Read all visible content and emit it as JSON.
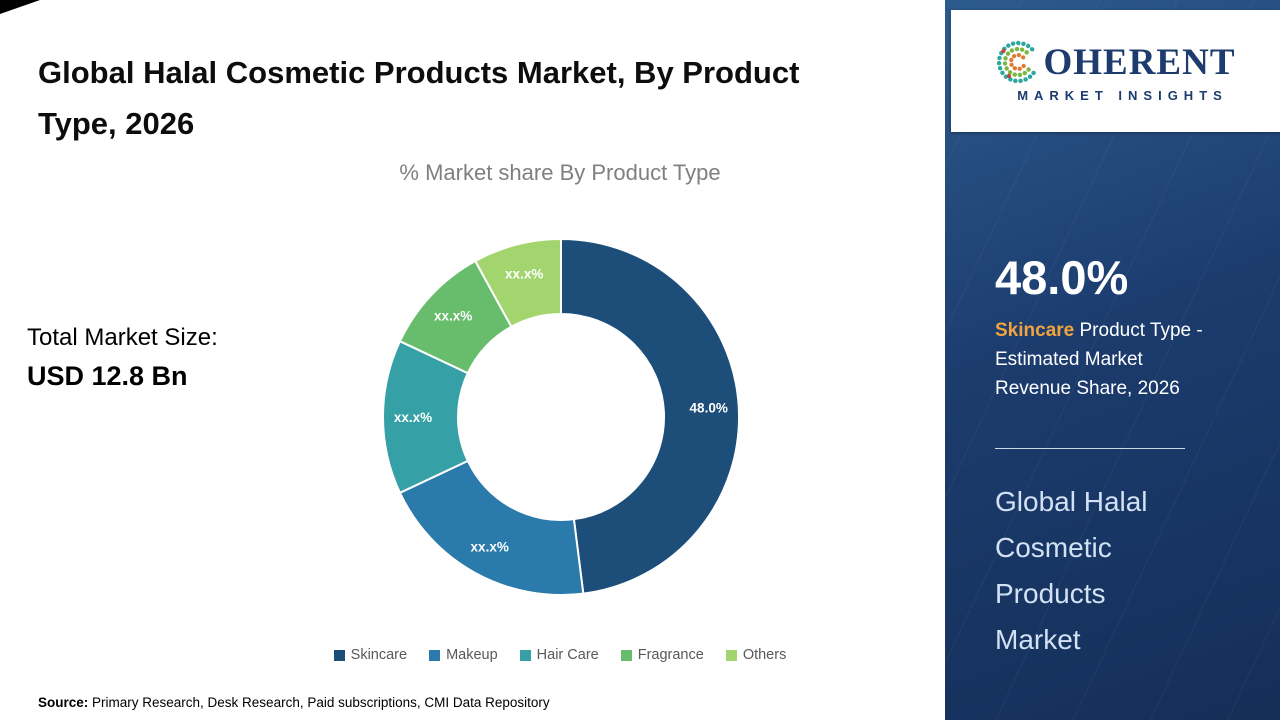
{
  "title": "Global Halal Cosmetic Products Market, By Product Type, 2026",
  "chart_subtitle": "% Market share By Product Type",
  "total_market": {
    "label": "Total Market Size:",
    "value": "USD 12.8 Bn"
  },
  "source": {
    "label": "Source:",
    "text": " Primary Research, Desk Research, Paid subscriptions, CMI Data Repository"
  },
  "chart_data": {
    "type": "pie",
    "subtype": "donut",
    "title": "% Market share By Product Type",
    "categories": [
      "Skincare",
      "Makeup",
      "Hair Care",
      "Fragrance",
      "Others"
    ],
    "values": [
      48.0,
      20.0,
      14.0,
      10.0,
      8.0
    ],
    "labels": [
      "48.0%",
      "xx.x%",
      "xx.x%",
      "xx.x%",
      "xx.x%"
    ],
    "colors": [
      "#1d4e79",
      "#2a7aab",
      "#35a0a5",
      "#67bd6b",
      "#a2d56e"
    ],
    "value_note": "Only Skincare share (48.0%) is labeled; other segment values are masked as xx.x% and estimated from arc angles",
    "legend_position": "bottom",
    "start_angle_deg": 0,
    "inner_radius_ratio": 0.58
  },
  "logo": {
    "wordmark_rest": "OHERENT",
    "tagline": "MARKET INSIGHTS"
  },
  "panel": {
    "stat_value": "48.0%",
    "stat_highlight": "Skincare",
    "stat_rest": " Product Type - Estimated Market Revenue Share, 2026",
    "market_name": "Global Halal Cosmetic Products Market",
    "accent_color": "#f2a33c"
  }
}
